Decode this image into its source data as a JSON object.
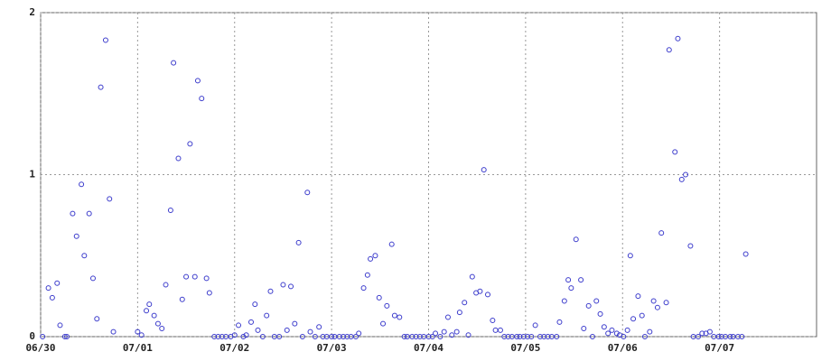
{
  "chart_data": {
    "type": "scatter",
    "color": "#3c3ccc",
    "grid": true,
    "xlim": [
      0,
      8
    ],
    "ylim": [
      0,
      2
    ],
    "xticks": [
      {
        "value": 0,
        "label": "06/30"
      },
      {
        "value": 1,
        "label": "07/01"
      },
      {
        "value": 2,
        "label": "07/02"
      },
      {
        "value": 3,
        "label": "07/03"
      },
      {
        "value": 4,
        "label": "07/04"
      },
      {
        "value": 5,
        "label": "07/05"
      },
      {
        "value": 6,
        "label": "07/06"
      },
      {
        "value": 7,
        "label": "07/07"
      }
    ],
    "yticks": [
      0,
      1,
      2
    ],
    "x": [
      0.02,
      0.08,
      0.12,
      0.17,
      0.2,
      0.25,
      0.27,
      0.33,
      0.37,
      0.42,
      0.45,
      0.5,
      0.54,
      0.58,
      0.62,
      0.67,
      0.71,
      0.75,
      1.0,
      1.04,
      1.09,
      1.12,
      1.17,
      1.21,
      1.25,
      1.29,
      1.34,
      1.37,
      1.42,
      1.46,
      1.5,
      1.54,
      1.59,
      1.62,
      1.66,
      1.71,
      1.74,
      1.79,
      1.83,
      1.87,
      1.91,
      1.96,
      2.0,
      2.04,
      2.09,
      2.12,
      2.17,
      2.21,
      2.24,
      2.29,
      2.33,
      2.37,
      2.41,
      2.46,
      2.5,
      2.54,
      2.58,
      2.62,
      2.66,
      2.7,
      2.75,
      2.78,
      2.83,
      2.87,
      2.91,
      2.95,
      3.0,
      3.03,
      3.08,
      3.12,
      3.16,
      3.2,
      3.25,
      3.28,
      3.33,
      3.37,
      3.4,
      3.45,
      3.49,
      3.53,
      3.57,
      3.62,
      3.65,
      3.7,
      3.75,
      3.78,
      3.83,
      3.87,
      3.91,
      3.95,
      4.0,
      4.04,
      4.07,
      4.12,
      4.16,
      4.2,
      4.24,
      4.29,
      4.32,
      4.37,
      4.41,
      4.45,
      4.49,
      4.53,
      4.57,
      4.61,
      4.66,
      4.69,
      4.74,
      4.78,
      4.82,
      4.86,
      4.91,
      4.94,
      4.98,
      5.02,
      5.06,
      5.1,
      5.15,
      5.19,
      5.23,
      5.27,
      5.32,
      5.35,
      5.4,
      5.44,
      5.47,
      5.52,
      5.57,
      5.6,
      5.65,
      5.69,
      5.73,
      5.77,
      5.81,
      5.85,
      5.89,
      5.94,
      5.97,
      6.01,
      6.05,
      6.08,
      6.11,
      6.16,
      6.2,
      6.23,
      6.28,
      6.32,
      6.36,
      6.4,
      6.45,
      6.48,
      6.54,
      6.57,
      6.61,
      6.65,
      6.7,
      6.73,
      6.78,
      6.82,
      6.86,
      6.9,
      6.94,
      6.99,
      7.02,
      7.06,
      7.11,
      7.14,
      7.19,
      7.23,
      7.27
    ],
    "values": [
      0,
      0.3,
      0.24,
      0.33,
      0.07,
      0,
      0,
      0.76,
      0.62,
      0.94,
      0.5,
      0.76,
      0.36,
      0.11,
      1.54,
      1.83,
      0.85,
      0.03,
      0.03,
      0.01,
      0.16,
      0.2,
      0.13,
      0.08,
      0.05,
      0.32,
      0.78,
      1.69,
      1.1,
      0.23,
      0.37,
      1.19,
      0.37,
      1.58,
      1.47,
      0.36,
      0.27,
      0,
      0,
      0,
      0,
      0,
      0.01,
      0.07,
      0,
      0.01,
      0.09,
      0.2,
      0.04,
      0,
      0.13,
      0.28,
      0,
      0,
      0.32,
      0.04,
      0.31,
      0.08,
      0.58,
      0,
      0.89,
      0.03,
      0,
      0.06,
      0,
      0,
      0,
      0,
      0,
      0,
      0,
      0,
      0,
      0.02,
      0.3,
      0.38,
      0.48,
      0.5,
      0.24,
      0.08,
      0.19,
      0.57,
      0.13,
      0.12,
      0,
      0,
      0,
      0,
      0,
      0,
      0,
      0,
      0.02,
      0,
      0.03,
      0.12,
      0.01,
      0.03,
      0.15,
      0.21,
      0.01,
      0.37,
      0.27,
      0.28,
      1.03,
      0.26,
      0.1,
      0.04,
      0.04,
      0,
      0,
      0,
      0,
      0,
      0,
      0,
      0,
      0.07,
      0,
      0,
      0,
      0,
      0,
      0.09,
      0.22,
      0.35,
      0.3,
      0.6,
      0.35,
      0.05,
      0.19,
      0,
      0.22,
      0.14,
      0.06,
      0.02,
      0.04,
      0.02,
      0.01,
      0,
      0.04,
      0.5,
      0.11,
      0.25,
      0.13,
      0,
      0.03,
      0.22,
      0.18,
      0.64,
      0.21,
      1.77,
      1.14,
      1.84,
      0.97,
      1.0,
      0.56,
      0,
      0,
      0.02,
      0.02,
      0.03,
      0,
      0,
      0,
      0,
      0,
      0,
      0,
      0,
      0.51
    ]
  }
}
